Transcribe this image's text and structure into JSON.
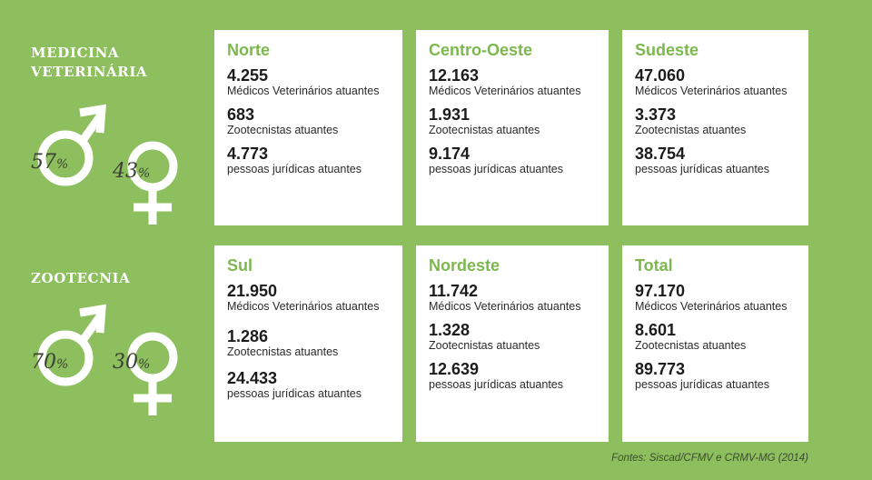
{
  "sections": {
    "medicina": {
      "title_line1": "MEDICINA",
      "title_line2": "VETERINÁRIA",
      "male_pct": "57",
      "female_pct": "43",
      "pct_sign": "%"
    },
    "zootecnia": {
      "title_line1": "ZOOTECNIA",
      "male_pct": "70",
      "female_pct": "30",
      "pct_sign": "%"
    }
  },
  "regions": [
    {
      "name": "Norte",
      "vets": "4.255",
      "zoo": "683",
      "pj": "4.773"
    },
    {
      "name": "Centro-Oeste",
      "vets": "12.163",
      "zoo": "1.931",
      "pj": "9.174"
    },
    {
      "name": "Sudeste",
      "vets": "47.060",
      "zoo": "3.373",
      "pj": "38.754"
    },
    {
      "name": "Sul",
      "vets": "21.950",
      "zoo": "1.286",
      "pj": "24.433"
    },
    {
      "name": "Nordeste",
      "vets": "11.742",
      "zoo": "1.328",
      "pj": "12.639"
    },
    {
      "name": "Total",
      "vets": "97.170",
      "zoo": "8.601",
      "pj": "89.773"
    }
  ],
  "labels": {
    "vets": "Médicos Veterinários atuantes",
    "zoo": "Zootecnistas atuantes",
    "pj": "pessoas jurídicas atuantes"
  },
  "source": "Fontes: Siscad/CFMV e CRMV-MG (2014)",
  "colors": {
    "background": "#8dbf5e",
    "accent": "#7cb84e",
    "card": "#ffffff"
  },
  "icons": [
    "male-symbol-icon",
    "female-symbol-icon"
  ]
}
